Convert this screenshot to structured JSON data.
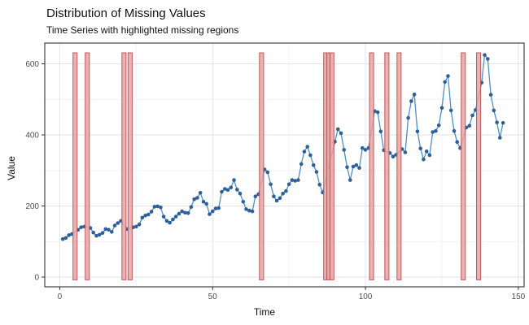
{
  "header": {
    "title": "Distribution of Missing Values",
    "subtitle": "Time Series with highlighted missing regions"
  },
  "chart_data": {
    "type": "line",
    "title": "Distribution of Missing Values",
    "subtitle": "Time Series with highlighted missing regions",
    "xlabel": "Time",
    "ylabel": "Value",
    "xlim": [
      -4.9,
      151.9
    ],
    "ylim": [
      -27.5,
      658.5
    ],
    "x_ticks": [
      0,
      50,
      100,
      150
    ],
    "y_ticks": [
      0,
      200,
      400,
      600
    ],
    "x_minor_ticks": [
      25,
      75,
      125
    ],
    "y_minor_ticks": [
      100,
      300,
      500
    ],
    "grid": true,
    "legend": false,
    "series": [
      {
        "name": "value",
        "x_start": 1,
        "x_step": 1,
        "values": [
          107,
          110,
          118,
          121,
          null,
          133,
          140,
          142,
          null,
          138,
          125,
          116,
          119,
          124,
          135,
          133,
          127,
          145,
          152,
          158,
          null,
          135,
          null,
          140,
          142,
          148,
          167,
          173,
          176,
          184,
          198,
          199,
          196,
          170,
          158,
          153,
          162,
          170,
          178,
          185,
          181,
          180,
          197,
          219,
          223,
          237,
          212,
          206,
          177,
          185,
          193,
          194,
          240,
          248,
          245,
          252,
          273,
          246,
          235,
          212,
          191,
          187,
          185,
          227,
          233,
          null,
          303,
          295,
          261,
          227,
          215,
          222,
          235,
          242,
          261,
          273,
          271,
          273,
          318,
          353,
          367,
          343,
          315,
          296,
          260,
          238,
          null,
          null,
          null,
          381,
          416,
          405,
          358,
          309,
          273,
          311,
          315,
          307,
          363,
          358,
          363,
          null,
          467,
          464,
          410,
          357,
          null,
          349,
          339,
          344,
          null,
          360,
          351,
          448,
          495,
          514,
          410,
          362,
          331,
          354,
          343,
          408,
          411,
          427,
          476,
          549,
          566,
          469,
          411,
          380,
          363,
          null,
          421,
          426,
          455,
          470,
          null,
          547,
          625,
          614,
          513,
          469,
          435,
          392,
          434
        ]
      }
    ],
    "missing_times": [
      5,
      9,
      21,
      23,
      66,
      87,
      88,
      89,
      102,
      107,
      111,
      132,
      137
    ],
    "missing_bar": {
      "ymin": -8,
      "ymax": 631,
      "width": 1.35
    },
    "colors": {
      "point": "#2d609b",
      "line": "#4e8fcc",
      "bar_fill": "#e9a3a3",
      "bar_stroke": "#c05a5a",
      "grid_major": "#e3e3e3",
      "grid_minor": "#f1f1f1",
      "panel_border": "#333333",
      "tick": "#333333",
      "tick_label": "#4d4d4d",
      "text": "#111111",
      "panel_bg": "#ffffff"
    }
  }
}
